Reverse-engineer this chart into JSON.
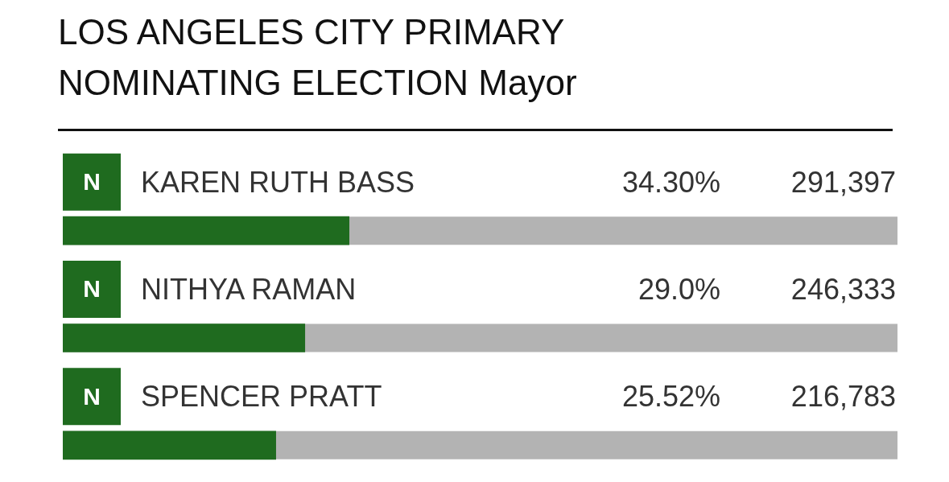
{
  "chart_data": {
    "type": "bar",
    "orientation": "horizontal",
    "title": "LOS ANGELES CITY PRIMARY NOMINATING ELECTION Mayor",
    "categories": [
      "KAREN RUTH BASS",
      "NITHYA RAMAN",
      "SPENCER PRATT"
    ],
    "values": [
      34.3,
      29.0,
      25.52
    ],
    "value_labels": [
      "34.30%",
      "29.0%",
      "25.52%"
    ],
    "color": "#1f6b1f",
    "xlim": [
      0,
      100
    ],
    "tick_labels": false,
    "grid": false,
    "legend": false,
    "annotations": [
      "N",
      "291,397",
      "N",
      "246,333",
      "N",
      "216,783"
    ]
  }
}
